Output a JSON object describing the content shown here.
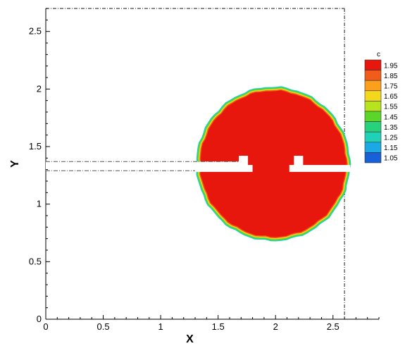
{
  "chart_data": {
    "type": "contour",
    "xlabel": "X",
    "ylabel": "Y",
    "xlim": [
      0,
      2.9
    ],
    "ylim": [
      0,
      2.7
    ],
    "x_ticks": [
      0,
      0.5,
      1,
      1.5,
      2,
      2.5
    ],
    "x_tick_labels": [
      "0",
      "0.5",
      "1",
      "1.5",
      "2",
      "2.5"
    ],
    "y_ticks": [
      0,
      0.5,
      1,
      1.5,
      2,
      2.5
    ],
    "y_tick_labels": [
      "0",
      "0.5",
      "1",
      "1.5",
      "2",
      "2.5"
    ],
    "domain": {
      "x": [
        0,
        2.6
      ],
      "y": [
        0,
        2.7
      ]
    },
    "blob": {
      "center": [
        1.98,
        1.35
      ],
      "radius": 0.64,
      "value": 1.95
    },
    "channel": {
      "y_bottom": 1.29,
      "y_top": 1.37,
      "x_start": 0,
      "x_end": 1.72
    },
    "slot_left": {
      "x": [
        1.3,
        1.8
      ],
      "y": [
        1.28,
        1.34
      ],
      "stub_x": [
        1.68,
        1.76
      ],
      "stub_top": 1.42
    },
    "slot_right": {
      "x": [
        2.12,
        2.65
      ],
      "y": [
        1.28,
        1.34
      ],
      "stub_x": [
        2.16,
        2.24
      ],
      "stub_top": 1.42
    },
    "legend": {
      "title": "c",
      "position": "right",
      "levels": [
        {
          "label": "1.95",
          "color": "#e8170e"
        },
        {
          "label": "1.85",
          "color": "#f25c1a"
        },
        {
          "label": "1.75",
          "color": "#fb9f1d"
        },
        {
          "label": "1.65",
          "color": "#f2d91d"
        },
        {
          "label": "1.55",
          "color": "#b7e31f"
        },
        {
          "label": "1.45",
          "color": "#5bd52a"
        },
        {
          "label": "1.35",
          "color": "#27d27c"
        },
        {
          "label": "1.25",
          "color": "#20d1b8"
        },
        {
          "label": "1.15",
          "color": "#1aa9e5"
        },
        {
          "label": "1.05",
          "color": "#1760d8"
        }
      ]
    }
  }
}
